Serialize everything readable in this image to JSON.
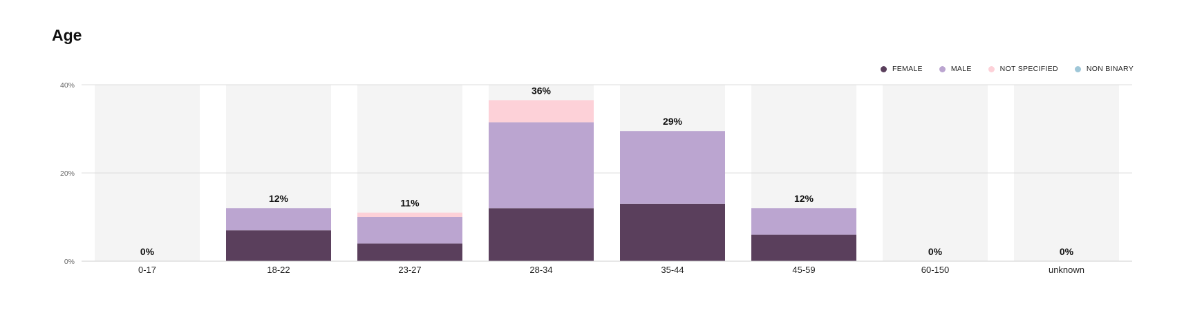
{
  "chart_data": {
    "type": "bar",
    "stacked": true,
    "title": "Age",
    "xlabel": "",
    "ylabel": "",
    "ylim": [
      0,
      40
    ],
    "y_ticks": [
      "0%",
      "20%",
      "40%"
    ],
    "y_tick_values": [
      0,
      20,
      40
    ],
    "grid": true,
    "legend_position": "top-right",
    "categories": [
      "0-17",
      "18-22",
      "23-27",
      "28-34",
      "35-44",
      "45-59",
      "60-150",
      "unknown"
    ],
    "totals": [
      "0%",
      "12%",
      "11%",
      "36%",
      "29%",
      "12%",
      "0%",
      "0%"
    ],
    "series": [
      {
        "name": "FEMALE",
        "color": "#5a3f5c",
        "values": [
          0,
          7,
          4,
          12,
          13,
          6,
          0,
          0
        ]
      },
      {
        "name": "MALE",
        "color": "#bba5d0",
        "values": [
          0,
          5,
          6,
          19.5,
          16.5,
          6,
          0,
          0
        ]
      },
      {
        "name": "NOT SPECIFIED",
        "color": "#fdd1d8",
        "values": [
          0,
          0,
          1,
          5,
          0,
          0,
          0,
          0
        ]
      },
      {
        "name": "NON BINARY",
        "color": "#9fc7d8",
        "values": [
          0,
          0,
          0,
          0,
          0,
          0,
          0,
          0
        ]
      }
    ],
    "background_bar_color": "#f4f4f4"
  }
}
